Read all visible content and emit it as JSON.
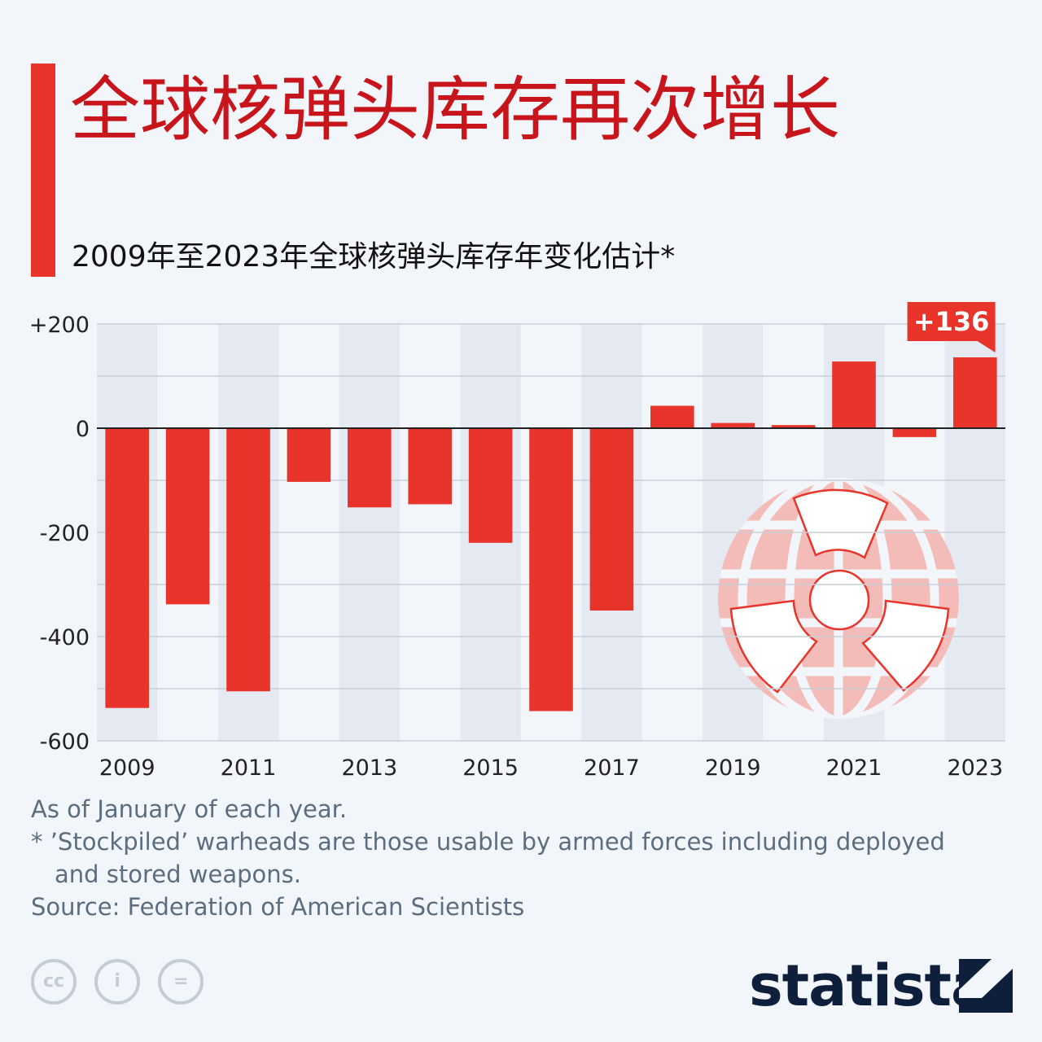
{
  "header": {
    "title": "全球核弹头库存再次增长",
    "subtitle": "2009年至2023年全球核弹头库存年变化估计*"
  },
  "colors": {
    "accent": "#e8342a",
    "title": "#c8141b",
    "bar": "#e8342a",
    "band": "#e5e9f1",
    "grid": "#c9cfd8",
    "text": "#111111",
    "footnote": "#5b6d80",
    "logo": "#0e1f3c",
    "watermark": "#f4bcb8"
  },
  "chart_data": {
    "type": "bar",
    "x": [
      2009,
      2010,
      2011,
      2012,
      2013,
      2014,
      2015,
      2016,
      2017,
      2018,
      2019,
      2020,
      2021,
      2022,
      2023
    ],
    "values": [
      -537,
      -338,
      -505,
      -103,
      -152,
      -146,
      -220,
      -543,
      -350,
      43,
      10,
      6,
      128,
      -17,
      136
    ],
    "x_tick_labels": [
      "2009",
      "2011",
      "2013",
      "2015",
      "2017",
      "2019",
      "2021",
      "2023"
    ],
    "y_tick_labels": [
      "+200",
      "0",
      "-200",
      "-400",
      "-600"
    ],
    "y_ticks": [
      200,
      0,
      -200,
      -400,
      -600
    ],
    "ylim": [
      -600,
      200
    ],
    "grid": true,
    "alternating_bands": true,
    "annotation": {
      "year": 2023,
      "text": "+136"
    },
    "watermark_icon": "radiation-globe-icon"
  },
  "footnotes": {
    "note1": "As of January of each year.",
    "note2_line1": "* ’Stockpiled’ warheads are those usable by armed forces including deployed",
    "note2_line2": "and stored weapons.",
    "source": "Source: Federation of American Scientists"
  },
  "license_icons": [
    {
      "name": "cc-icon",
      "glyph": "cc"
    },
    {
      "name": "attribution-icon",
      "glyph": "i"
    },
    {
      "name": "no-derivatives-icon",
      "glyph": "="
    }
  ],
  "brand": {
    "logo_text": "statista"
  }
}
